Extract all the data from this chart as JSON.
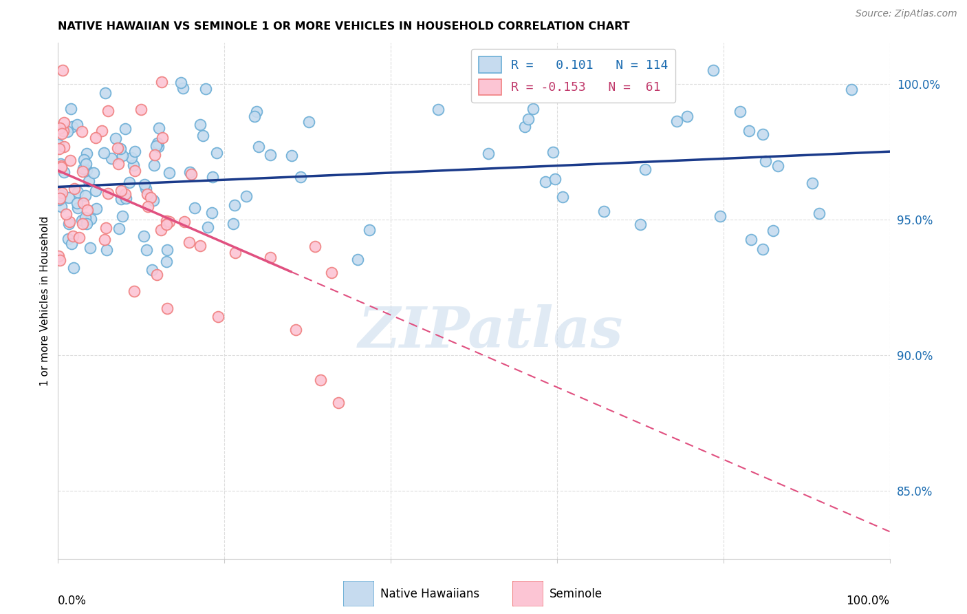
{
  "title": "NATIVE HAWAIIAN VS SEMINOLE 1 OR MORE VEHICLES IN HOUSEHOLD CORRELATION CHART",
  "source": "Source: ZipAtlas.com",
  "ylabel": "1 or more Vehicles in Household",
  "legend_label1": "Native Hawaiians",
  "legend_label2": "Seminole",
  "r1": 0.101,
  "n1": 114,
  "r2": -0.153,
  "n2": 61,
  "color_blue_face": "#c6dbef",
  "color_blue_edge": "#6baed6",
  "color_pink_face": "#fcc5d4",
  "color_pink_edge": "#f08080",
  "color_blue_line": "#1a3a8a",
  "color_pink_line": "#e05080",
  "color_pink_line_dashed": "#e05080",
  "watermark": "ZIPatlas",
  "xlim": [
    0,
    100
  ],
  "ylim": [
    82.5,
    101.5
  ],
  "y_ticks": [
    85.0,
    90.0,
    95.0,
    100.0
  ],
  "y_tick_labels": [
    "85.0%",
    "90.0%",
    "95.0%",
    "100.0%"
  ],
  "grid_color": "#dddddd",
  "blue_line_x0": 0,
  "blue_line_x1": 100,
  "blue_line_y0": 96.2,
  "blue_line_y1": 97.5,
  "pink_line_x0": 0,
  "pink_line_x1": 100,
  "pink_line_y0": 96.8,
  "pink_line_y1": 83.5,
  "pink_solid_xmax": 28
}
